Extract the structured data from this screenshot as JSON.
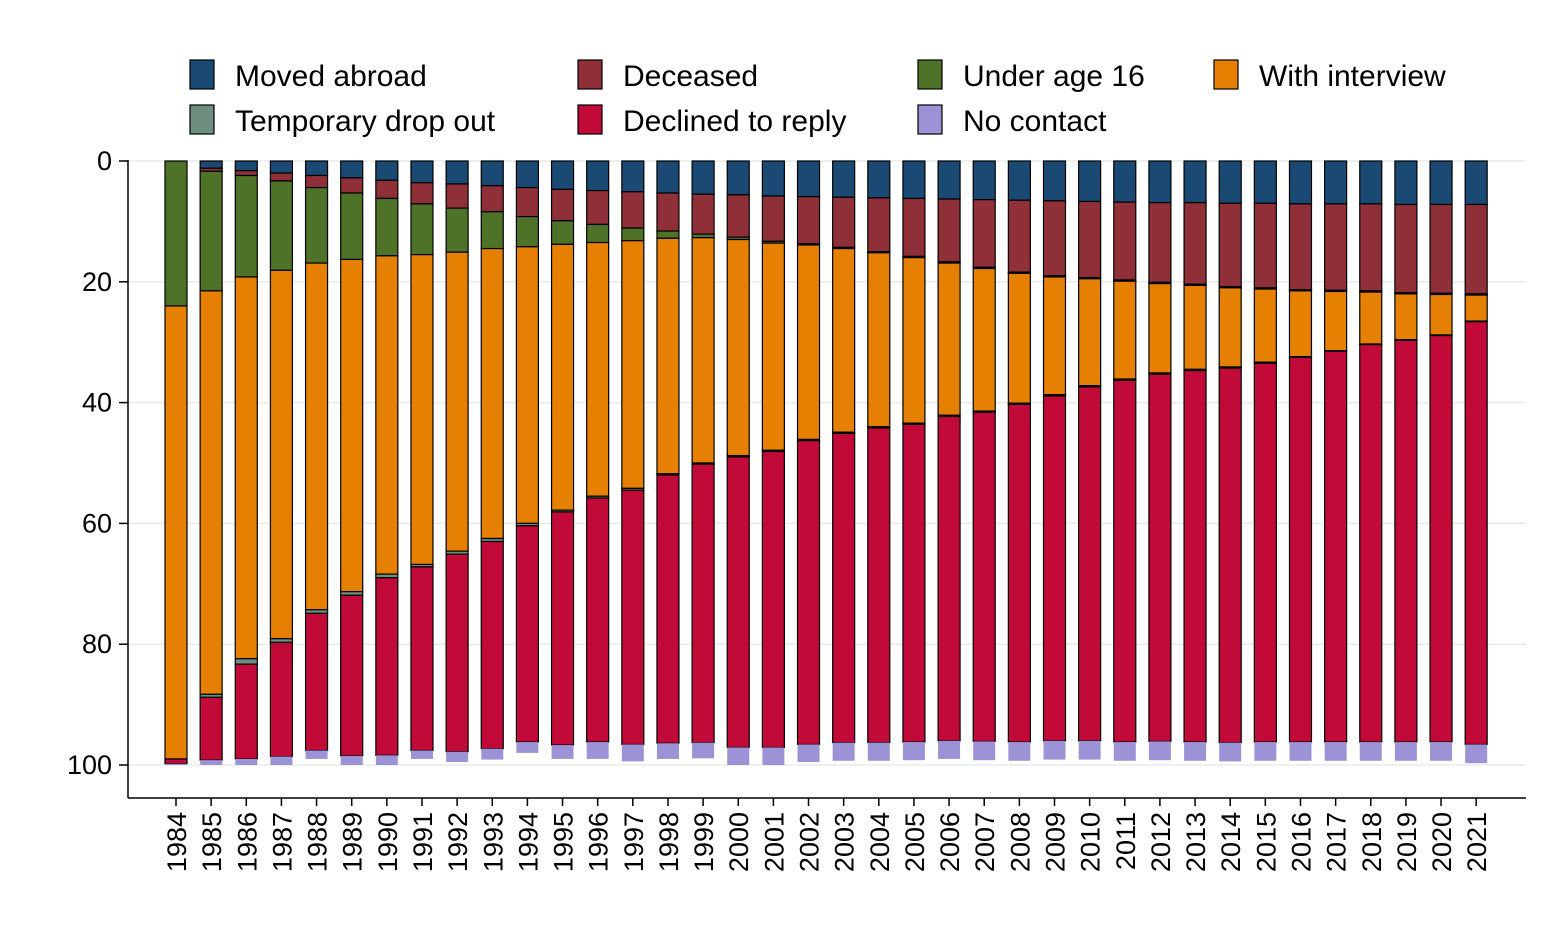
{
  "chart_data": {
    "type": "bar",
    "stacked": true,
    "orientation": "vertical",
    "y_axis_reversed": true,
    "title": "",
    "xlabel": "",
    "ylabel": "",
    "ylim": [
      0,
      100
    ],
    "yticks": [
      0,
      20,
      40,
      60,
      80,
      100
    ],
    "grid": "horizontal",
    "legend_position": "top",
    "categories": [
      "1984",
      "1985",
      "1986",
      "1987",
      "1988",
      "1989",
      "1990",
      "1991",
      "1992",
      "1993",
      "1994",
      "1995",
      "1996",
      "1997",
      "1998",
      "1999",
      "2000",
      "2001",
      "2002",
      "2003",
      "2004",
      "2005",
      "2006",
      "2007",
      "2008",
      "2009",
      "2010",
      "2011",
      "2012",
      "2013",
      "2014",
      "2015",
      "2016",
      "2017",
      "2018",
      "2019",
      "2020",
      "2021"
    ],
    "series": [
      {
        "name": "Moved abroad",
        "color": "#1a4a73",
        "values": [
          0,
          1.2,
          1.6,
          2.0,
          2.4,
          2.8,
          3.2,
          3.6,
          3.8,
          4.1,
          4.4,
          4.7,
          4.9,
          5.1,
          5.3,
          5.5,
          5.6,
          5.8,
          5.9,
          6.0,
          6.1,
          6.2,
          6.3,
          6.4,
          6.5,
          6.6,
          6.7,
          6.8,
          6.9,
          6.9,
          7.0,
          7.0,
          7.1,
          7.1,
          7.1,
          7.2,
          7.2,
          7.2
        ]
      },
      {
        "name": "Deceased",
        "color": "#8f3039",
        "values": [
          0,
          0.5,
          0.8,
          1.3,
          2.0,
          2.5,
          3.0,
          3.5,
          4.0,
          4.3,
          4.8,
          5.2,
          5.6,
          6.0,
          6.3,
          6.6,
          7.0,
          7.5,
          7.8,
          8.3,
          8.9,
          9.6,
          10.4,
          11.2,
          11.9,
          12.4,
          12.6,
          12.9,
          13.2,
          13.5,
          13.8,
          14.0,
          14.2,
          14.3,
          14.4,
          14.6,
          14.7,
          14.8
        ]
      },
      {
        "name": "Under age 16",
        "color": "#4e7228",
        "values": [
          24,
          19.8,
          16.8,
          14.8,
          12.5,
          11.0,
          9.5,
          8.4,
          7.3,
          6.1,
          5.0,
          3.9,
          3.0,
          2.1,
          1.2,
          0.6,
          0.4,
          0.3,
          0.2,
          0.2,
          0.2,
          0.2,
          0.2,
          0.2,
          0.2,
          0.2,
          0.2,
          0.2,
          0.2,
          0.2,
          0.2,
          0.2,
          0.2,
          0.2,
          0.2,
          0.2,
          0.2,
          0.2
        ]
      },
      {
        "name": "With interview",
        "color": "#e58003",
        "values": [
          75.0,
          66.8,
          63.2,
          61.0,
          57.4,
          55.0,
          52.7,
          51.3,
          49.5,
          48.0,
          45.8,
          44.0,
          42.0,
          41.0,
          39.0,
          37.3,
          35.8,
          34.3,
          32.2,
          30.4,
          28.8,
          27.4,
          25.2,
          23.6,
          21.5,
          19.5,
          17.7,
          16.2,
          14.8,
          13.9,
          13.1,
          12.1,
          10.9,
          9.8,
          8.6,
          7.6,
          6.7,
          4.3
        ]
      },
      {
        "name": "Temporary drop out",
        "color": "#6e8f80",
        "values": [
          0,
          0.5,
          0.9,
          0.6,
          0.6,
          0.6,
          0.6,
          0.4,
          0.5,
          0.5,
          0.4,
          0.3,
          0.3,
          0.3,
          0.2,
          0.2,
          0.2,
          0.2,
          0.2,
          0.2,
          0.2,
          0.2,
          0.2,
          0.2,
          0.2,
          0.2,
          0.2,
          0.2,
          0.2,
          0.2,
          0.2,
          0.2,
          0.1,
          0.1,
          0.1,
          0.1,
          0.1,
          0.1
        ]
      },
      {
        "name": "Declined to reply",
        "color": "#c20a38",
        "values": [
          0.8,
          10.4,
          15.7,
          18.9,
          22.7,
          26.6,
          29.4,
          30.4,
          32.7,
          34.3,
          35.8,
          38.6,
          40.4,
          42.1,
          44.4,
          46.1,
          48.1,
          49.0,
          50.3,
          51.2,
          52.1,
          52.6,
          53.7,
          54.5,
          55.9,
          57.1,
          58.6,
          59.9,
          60.8,
          61.5,
          62.0,
          62.7,
          63.7,
          64.7,
          65.8,
          66.5,
          67.3,
          70.0
        ]
      },
      {
        "name": "No contact",
        "color": "#9c93d6",
        "values": [
          0.2,
          0.8,
          1.0,
          1.4,
          1.4,
          1.5,
          1.6,
          1.4,
          1.7,
          1.8,
          1.8,
          2.3,
          2.8,
          2.8,
          2.6,
          2.6,
          2.9,
          2.9,
          2.9,
          3.0,
          3.0,
          3.0,
          3.0,
          3.1,
          3.1,
          3.1,
          3.1,
          3.1,
          3.1,
          3.1,
          3.1,
          3.1,
          3.1,
          3.1,
          3.1,
          3.1,
          3.1,
          3.1
        ]
      }
    ],
    "stack_order": [
      "Moved abroad",
      "Deceased",
      "Under age 16",
      "With interview",
      "Temporary drop out",
      "Declined to reply",
      "No contact"
    ],
    "legend_order": [
      "Moved abroad",
      "Deceased",
      "Under age 16",
      "With interview",
      "Temporary drop out",
      "Declined to reply",
      "No contact"
    ]
  }
}
